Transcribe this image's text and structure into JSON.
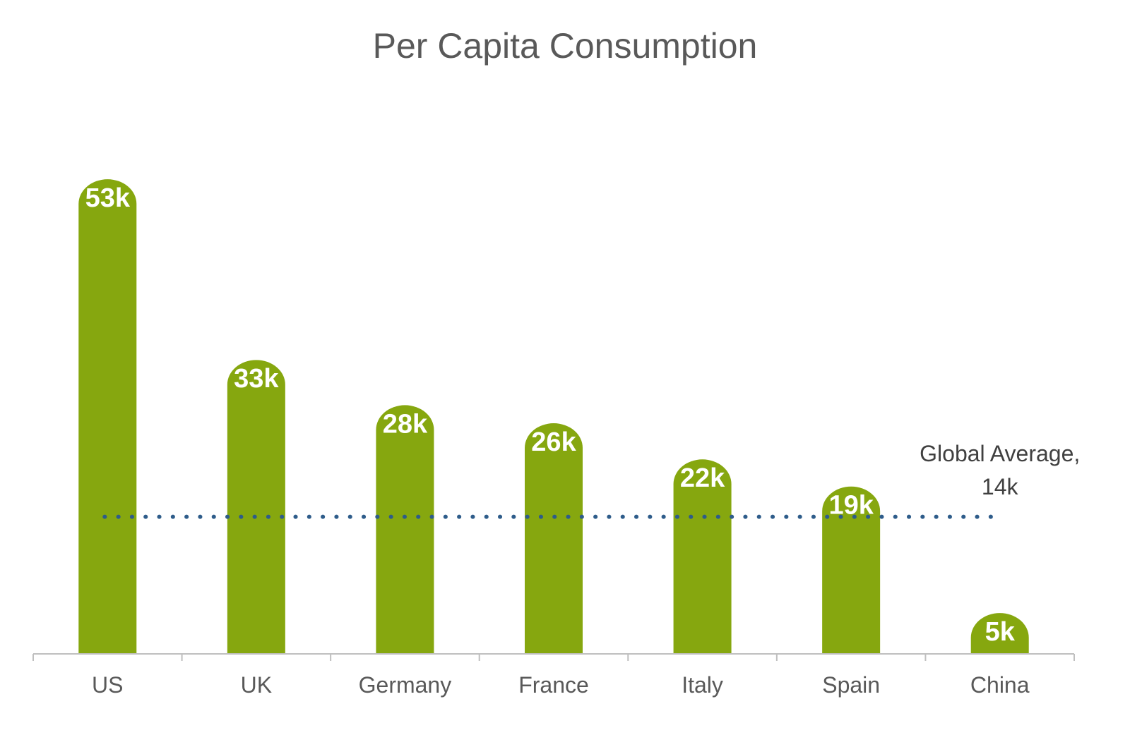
{
  "chart_data": {
    "type": "bar",
    "title": "Per Capita Consumption",
    "categories": [
      "US",
      "UK",
      "Germany",
      "France",
      "Italy",
      "Spain",
      "China"
    ],
    "values": [
      53,
      33,
      28,
      26,
      22,
      19,
      5
    ],
    "value_labels": [
      "53k",
      "33k",
      "28k",
      "26k",
      "22k",
      "19k",
      "5k"
    ],
    "ylim": [
      0,
      60
    ],
    "grid": false,
    "reference_line": {
      "value": 14,
      "label_line1": "Global Average,",
      "label_line2": "14k",
      "style": "dotted"
    },
    "colors": {
      "bar": "#86A70F",
      "reference_line": "#2E5C8A",
      "axis": "#BFBFBF",
      "text": "#595959"
    }
  }
}
